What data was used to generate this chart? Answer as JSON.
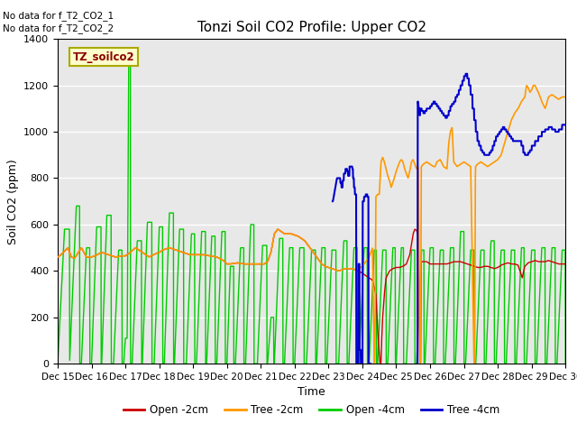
{
  "title": "Tonzi Soil CO2 Profile: Upper CO2",
  "ylabel": "Soil CO2 (ppm)",
  "xlabel": "Time",
  "note1": "No data for f_T2_CO2_1",
  "note2": "No data for f_T2_CO2_2",
  "legend_label": "TZ_soilco2",
  "legend_entries": [
    "Open -2cm",
    "Tree -2cm",
    "Open -4cm",
    "Tree -4cm"
  ],
  "colors": {
    "open2cm": "#CC0000",
    "tree2cm": "#FF9900",
    "open4cm": "#00CC00",
    "tree4cm": "#0000CC"
  },
  "ylim": [
    0,
    1400
  ],
  "plot_bg": "#E8E8E8"
}
